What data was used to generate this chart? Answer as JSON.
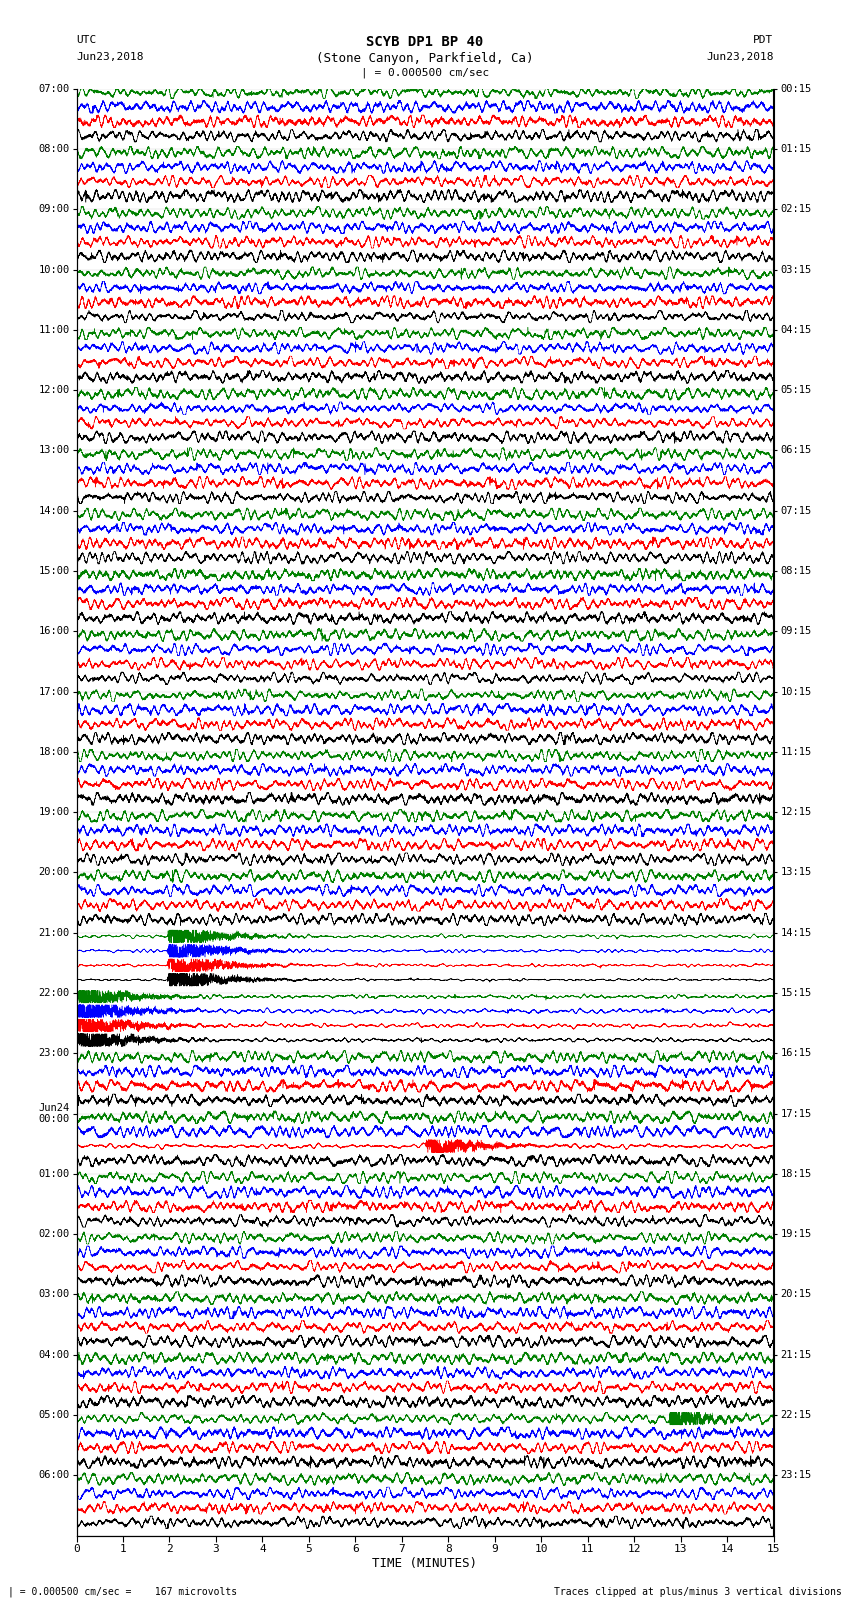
{
  "title_line1": "SCYB DP1 BP 40",
  "title_line2": "(Stone Canyon, Parkfield, Ca)",
  "scale_label": "| = 0.000500 cm/sec",
  "left_header_line1": "UTC",
  "left_header_line2": "Jun23,2018",
  "right_header_line1": "PDT",
  "right_header_line2": "Jun23,2018",
  "xlabel": "TIME (MINUTES)",
  "footer_left": "| = 0.000500 cm/sec =    167 microvolts",
  "footer_right": "Traces clipped at plus/minus 3 vertical divisions",
  "utc_labels": [
    "07:00",
    "08:00",
    "09:00",
    "10:00",
    "11:00",
    "12:00",
    "13:00",
    "14:00",
    "15:00",
    "16:00",
    "17:00",
    "18:00",
    "19:00",
    "20:00",
    "21:00",
    "22:00",
    "23:00",
    "Jun24\n00:00",
    "01:00",
    "02:00",
    "03:00",
    "04:00",
    "05:00",
    "06:00"
  ],
  "pdt_labels": [
    "00:15",
    "01:15",
    "02:15",
    "03:15",
    "04:15",
    "05:15",
    "06:15",
    "07:15",
    "08:15",
    "09:15",
    "10:15",
    "11:15",
    "12:15",
    "13:15",
    "14:15",
    "15:15",
    "16:15",
    "17:15",
    "18:15",
    "19:15",
    "20:15",
    "21:15",
    "22:15",
    "23:15"
  ],
  "trace_colors": [
    "black",
    "red",
    "blue",
    "green"
  ],
  "n_rows": 24,
  "traces_per_row": 4,
  "xmin": 0,
  "xmax": 15,
  "background_color": "white",
  "fig_width": 8.5,
  "fig_height": 16.13,
  "dpi": 100,
  "seed": 42
}
